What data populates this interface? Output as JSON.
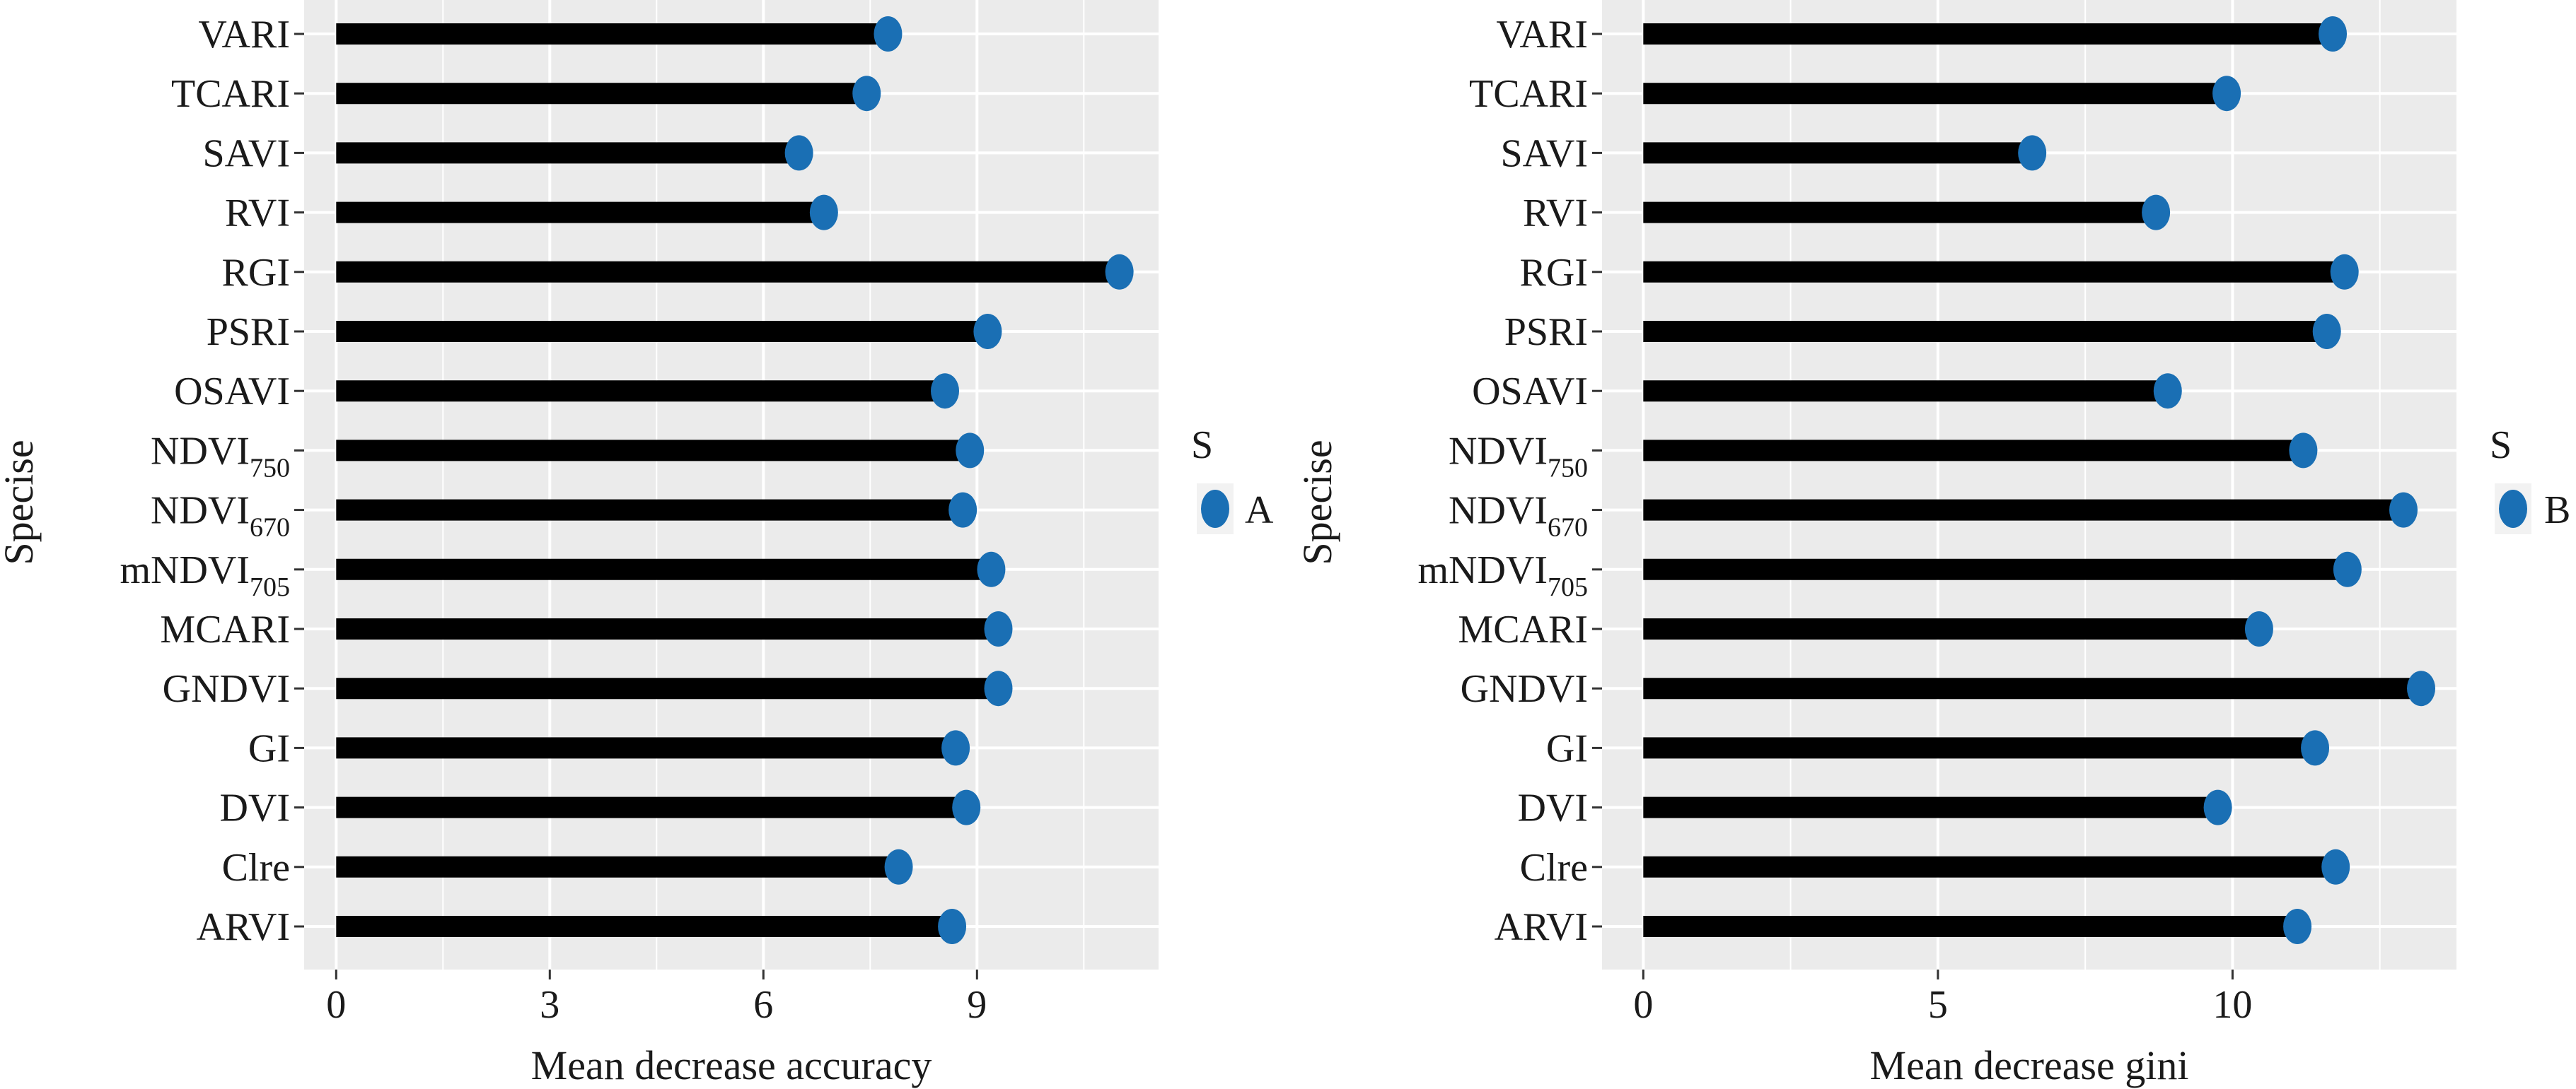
{
  "chart_data": [
    {
      "type": "lollipop",
      "ylabel": "Specise",
      "xlabel": "Mean decrease accuracy",
      "xlim": [
        -0.45,
        11.55
      ],
      "xticks": [
        0,
        3,
        6,
        9
      ],
      "categories": [
        "VARI",
        "TCARI",
        "SAVI",
        "RVI",
        "RGI",
        "PSRI",
        "OSAVI",
        "NDVI750",
        "NDVI670",
        "mNDVI705",
        "MCARI",
        "GNDVI",
        "GI",
        "DVI",
        "Clre",
        "ARVI"
      ],
      "category_labels": [
        {
          "base": "VARI",
          "sub": ""
        },
        {
          "base": "TCARI",
          "sub": ""
        },
        {
          "base": "SAVI",
          "sub": ""
        },
        {
          "base": "RVI",
          "sub": ""
        },
        {
          "base": "RGI",
          "sub": ""
        },
        {
          "base": "PSRI",
          "sub": ""
        },
        {
          "base": "OSAVI",
          "sub": ""
        },
        {
          "base": "NDVI",
          "sub": "750"
        },
        {
          "base": "NDVI",
          "sub": "670"
        },
        {
          "base": "mNDVI",
          "sub": "705"
        },
        {
          "base": "MCARI",
          "sub": ""
        },
        {
          "base": "GNDVI",
          "sub": ""
        },
        {
          "base": "GI",
          "sub": ""
        },
        {
          "base": "DVI",
          "sub": ""
        },
        {
          "base": "Clre",
          "sub": ""
        },
        {
          "base": "ARVI",
          "sub": ""
        }
      ],
      "values": [
        7.75,
        7.45,
        6.5,
        6.85,
        11.0,
        9.15,
        8.55,
        8.9,
        8.8,
        9.2,
        9.3,
        9.3,
        8.7,
        8.85,
        7.9,
        8.65
      ],
      "legend": {
        "title": "S",
        "label": "A"
      },
      "colors": {
        "point": "#1a6fb4",
        "stem": "#000000",
        "panel": "#ebebeb",
        "grid": "#ffffff"
      }
    },
    {
      "type": "lollipop",
      "ylabel": "Specise",
      "xlabel": "Mean decrease gini",
      "xlim": [
        -0.7,
        13.8
      ],
      "xticks": [
        0,
        5,
        10
      ],
      "categories": [
        "VARI",
        "TCARI",
        "SAVI",
        "RVI",
        "RGI",
        "PSRI",
        "OSAVI",
        "NDVI750",
        "NDVI670",
        "mNDVI705",
        "MCARI",
        "GNDVI",
        "GI",
        "DVI",
        "Clre",
        "ARVI"
      ],
      "category_labels": [
        {
          "base": "VARI",
          "sub": ""
        },
        {
          "base": "TCARI",
          "sub": ""
        },
        {
          "base": "SAVI",
          "sub": ""
        },
        {
          "base": "RVI",
          "sub": ""
        },
        {
          "base": "RGI",
          "sub": ""
        },
        {
          "base": "PSRI",
          "sub": ""
        },
        {
          "base": "OSAVI",
          "sub": ""
        },
        {
          "base": "NDVI",
          "sub": "750"
        },
        {
          "base": "NDVI",
          "sub": "670"
        },
        {
          "base": "mNDVI",
          "sub": "705"
        },
        {
          "base": "MCARI",
          "sub": ""
        },
        {
          "base": "GNDVI",
          "sub": ""
        },
        {
          "base": "GI",
          "sub": ""
        },
        {
          "base": "DVI",
          "sub": ""
        },
        {
          "base": "Clre",
          "sub": ""
        },
        {
          "base": "ARVI",
          "sub": ""
        }
      ],
      "values": [
        11.7,
        9.9,
        6.6,
        8.7,
        11.9,
        11.6,
        8.9,
        11.2,
        12.9,
        11.95,
        10.45,
        13.2,
        11.4,
        9.75,
        11.75,
        11.1
      ],
      "legend": {
        "title": "S",
        "label": "B"
      },
      "colors": {
        "point": "#1a6fb4",
        "stem": "#000000",
        "panel": "#ebebeb",
        "grid": "#ffffff"
      }
    }
  ]
}
